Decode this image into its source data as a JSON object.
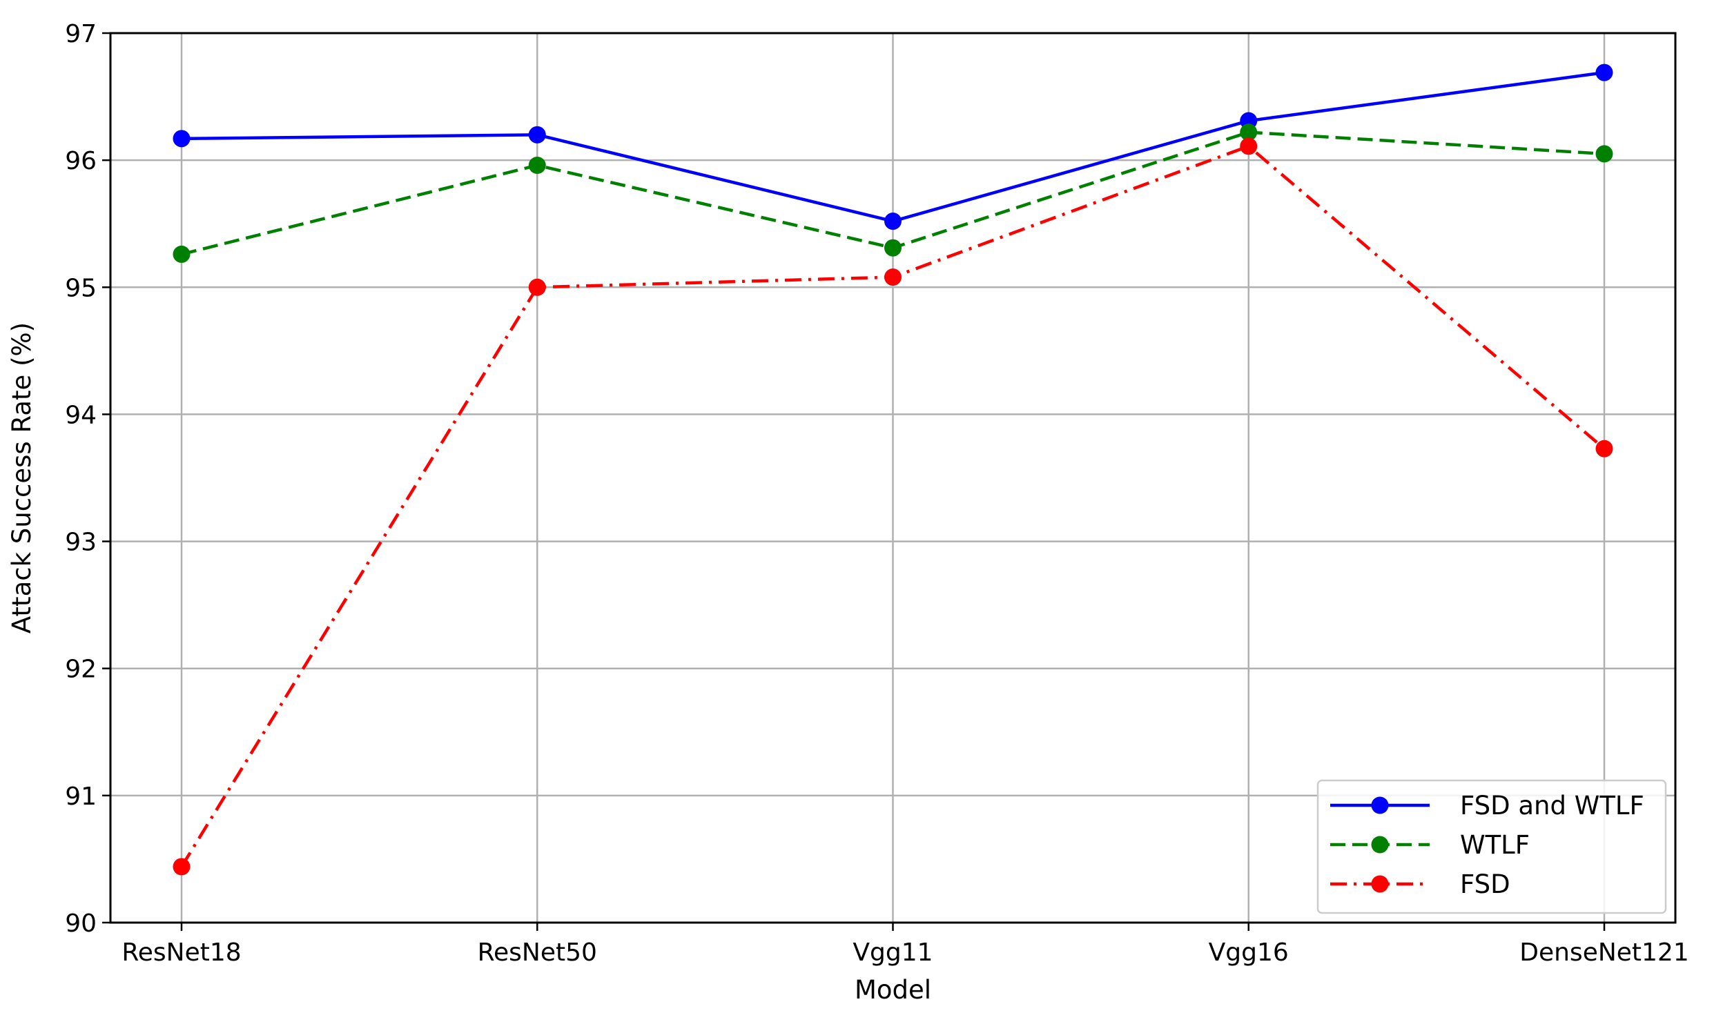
{
  "chart_data": {
    "type": "line",
    "title": "",
    "xlabel": "Model",
    "ylabel": "Attack Success Rate (%)",
    "categories": [
      "ResNet18",
      "ResNet50",
      "Vgg11",
      "Vgg16",
      "DenseNet121"
    ],
    "ylim": [
      90,
      97
    ],
    "yticks": [
      "90",
      "91",
      "92",
      "93",
      "94",
      "95",
      "96",
      "97"
    ],
    "grid": true,
    "legend_position": "bottom-right",
    "series": [
      {
        "name": "FSD and WTLF",
        "values": [
          96.17,
          96.2,
          95.52,
          96.31,
          96.69
        ],
        "color": "#0000ff",
        "line_style": "solid"
      },
      {
        "name": "WTLF",
        "values": [
          95.26,
          95.96,
          95.31,
          96.22,
          96.05
        ],
        "color": "#008000",
        "line_style": "dashed"
      },
      {
        "name": "FSD",
        "values": [
          90.44,
          95.0,
          95.08,
          96.11,
          93.73
        ],
        "color": "#ff0000",
        "line_style": "dashdot"
      }
    ]
  }
}
